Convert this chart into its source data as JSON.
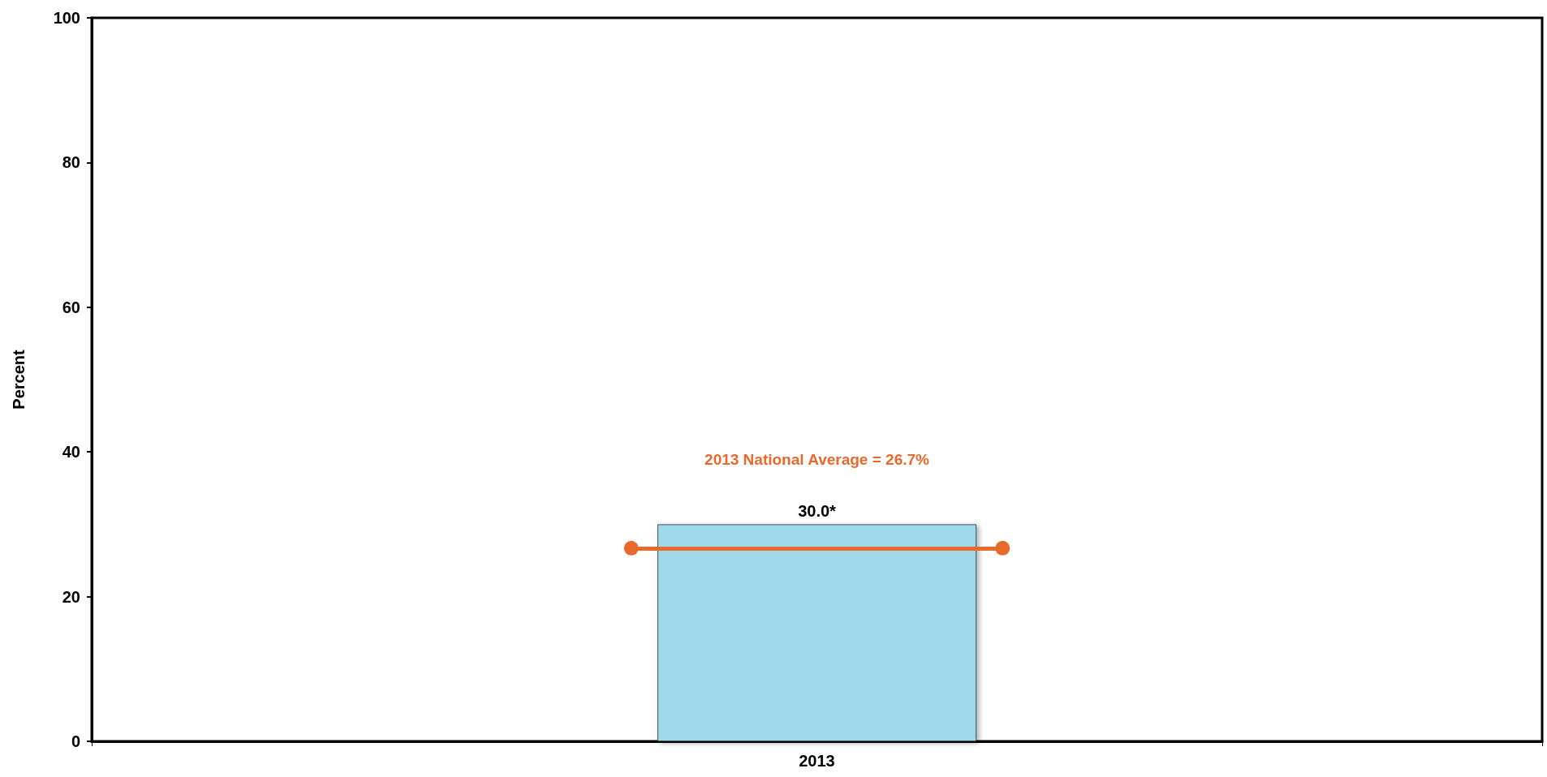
{
  "chart_data": {
    "type": "bar",
    "ylabel": "Percent",
    "categories": [
      "2013"
    ],
    "series": [
      {
        "color": "#9fd9ea",
        "values": [
          30.0
        ],
        "value_labels": [
          "30.0*"
        ]
      }
    ],
    "ylim": [
      0,
      100
    ],
    "yticks": [
      0,
      20,
      40,
      60,
      80,
      100
    ],
    "grid": false,
    "ref_lines": [
      {
        "axis": "y",
        "value": 26.7,
        "label": "2013 National Average = 26.7%",
        "color": "#e8692a",
        "line_style": "solid"
      }
    ],
    "marker": "circle"
  }
}
